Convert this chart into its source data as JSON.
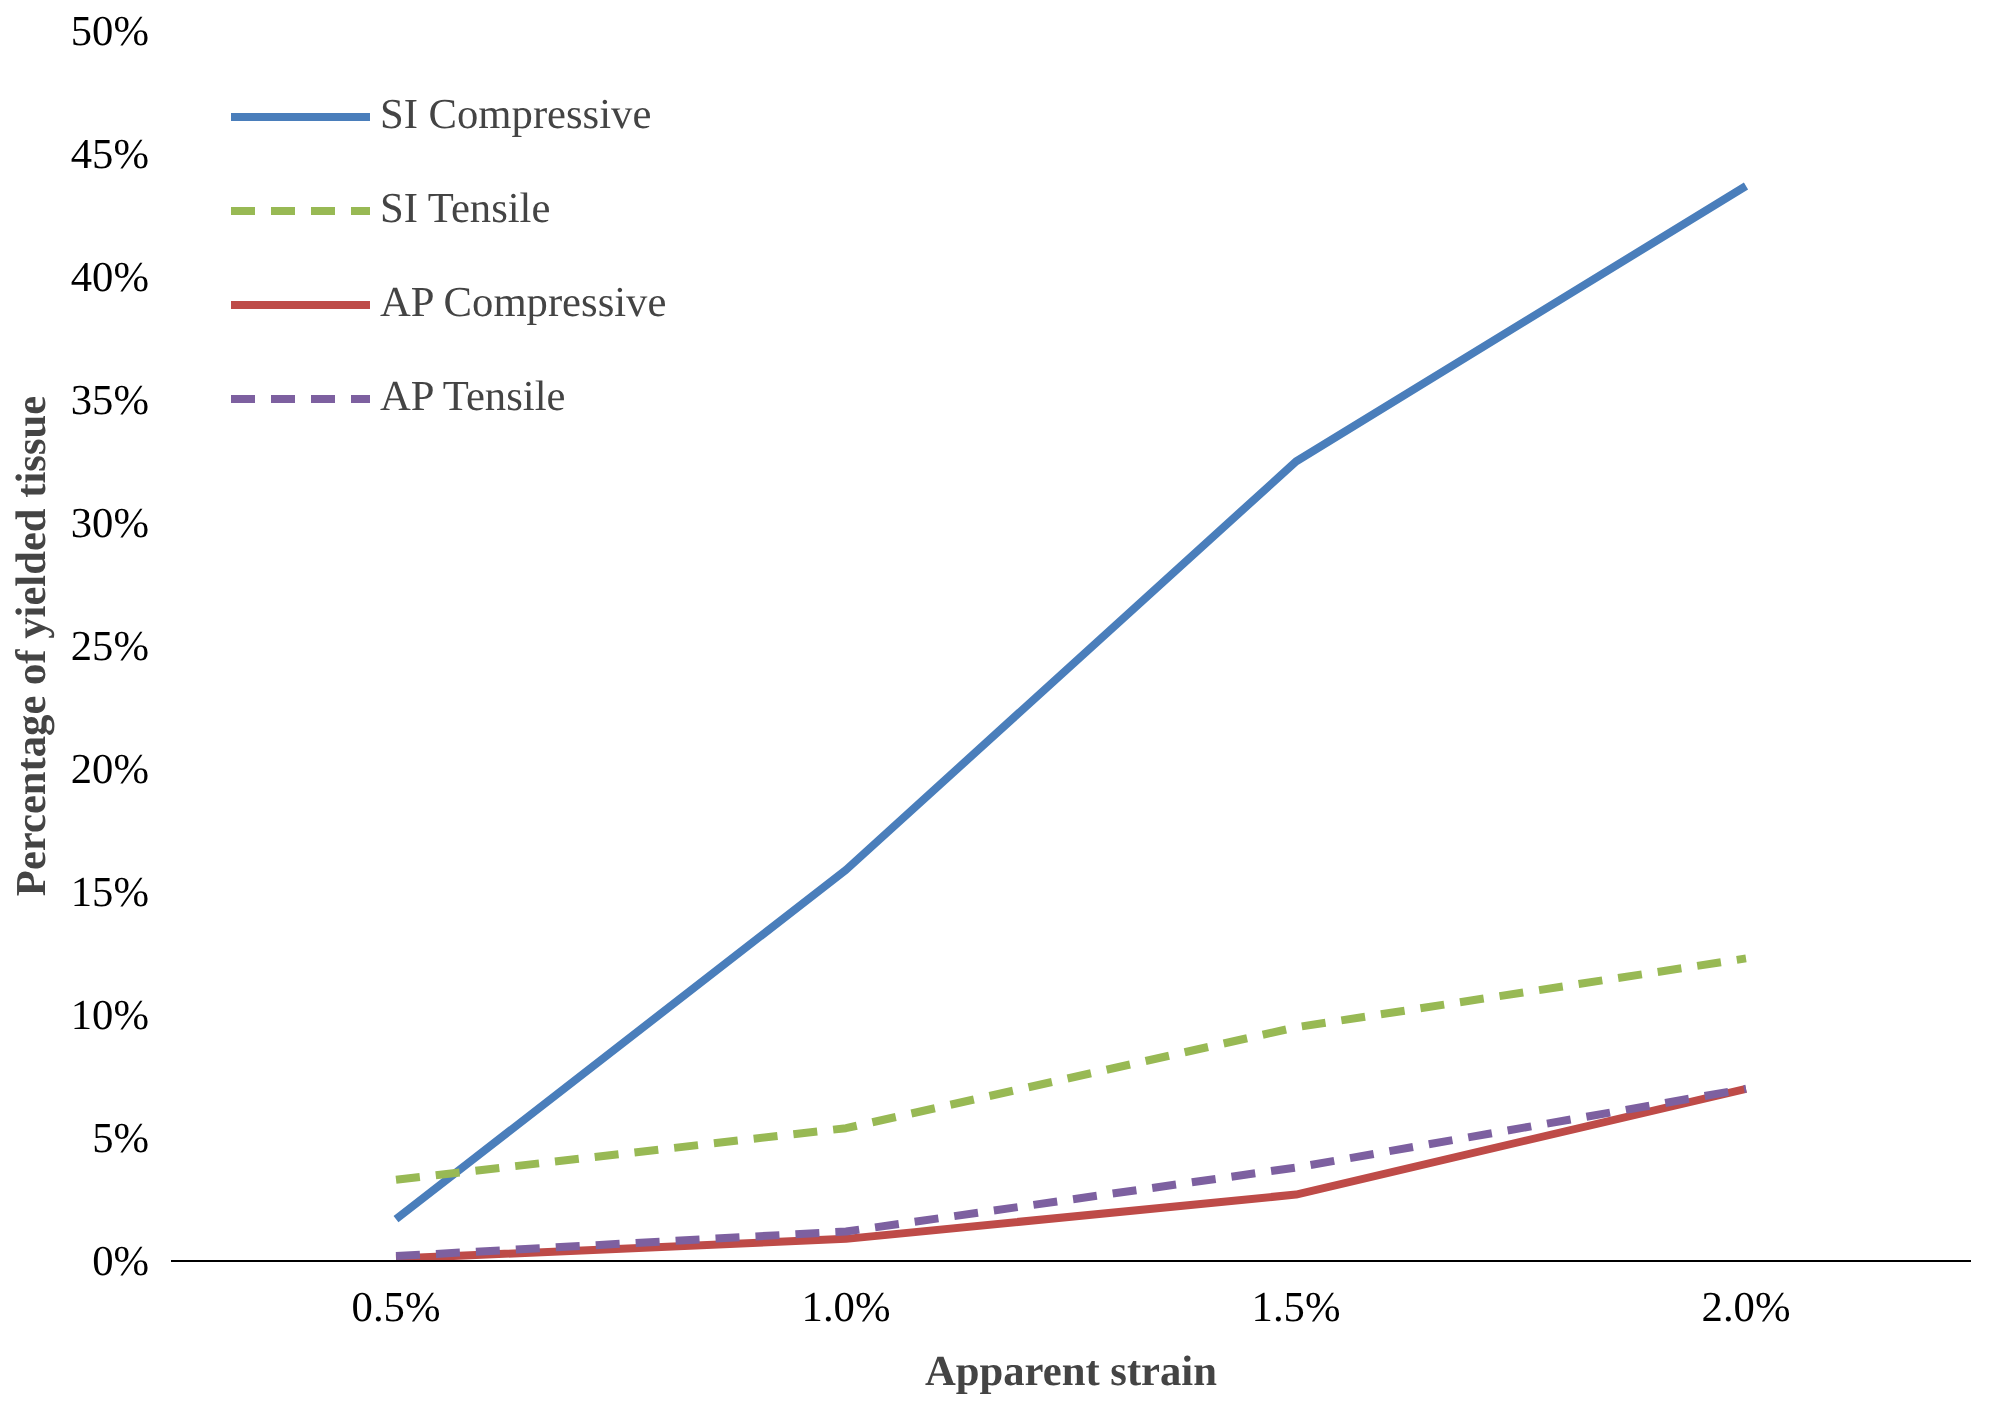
{
  "chart_data": {
    "type": "line",
    "xlabel": "Apparent strain",
    "ylabel": "Percentage of yielded tissue",
    "categories": [
      "0.5%",
      "1.0%",
      "1.5%",
      "2.0%"
    ],
    "series": [
      {
        "name": "SI Compressive",
        "color": "#4a7ebb",
        "line_style": "solid",
        "values": [
          1.7,
          15.9,
          32.5,
          43.7
        ]
      },
      {
        "name": "SI Tensile",
        "color": "#98b954",
        "line_style": "dashed",
        "values": [
          3.3,
          5.4,
          9.5,
          12.3
        ]
      },
      {
        "name": "AP Compressive",
        "color": "#be4b48",
        "line_style": "solid",
        "values": [
          0.1,
          0.9,
          2.7,
          7.0
        ]
      },
      {
        "name": "AP Tensile",
        "color": "#7d60a0",
        "line_style": "dashed",
        "values": [
          0.2,
          1.2,
          3.8,
          7.0
        ]
      }
    ],
    "ylim": [
      0,
      50
    ],
    "yticks": [
      {
        "value": 0,
        "label": "0%"
      },
      {
        "value": 5,
        "label": "5%"
      },
      {
        "value": 10,
        "label": "10%"
      },
      {
        "value": 15,
        "label": "15%"
      },
      {
        "value": 20,
        "label": "20%"
      },
      {
        "value": 25,
        "label": "25%"
      },
      {
        "value": 30,
        "label": "30%"
      },
      {
        "value": 35,
        "label": "35%"
      },
      {
        "value": 40,
        "label": "40%"
      },
      {
        "value": 45,
        "label": "45%"
      },
      {
        "value": 50,
        "label": "50%"
      }
    ],
    "grid": false,
    "legend": "top left",
    "marker": "none"
  }
}
